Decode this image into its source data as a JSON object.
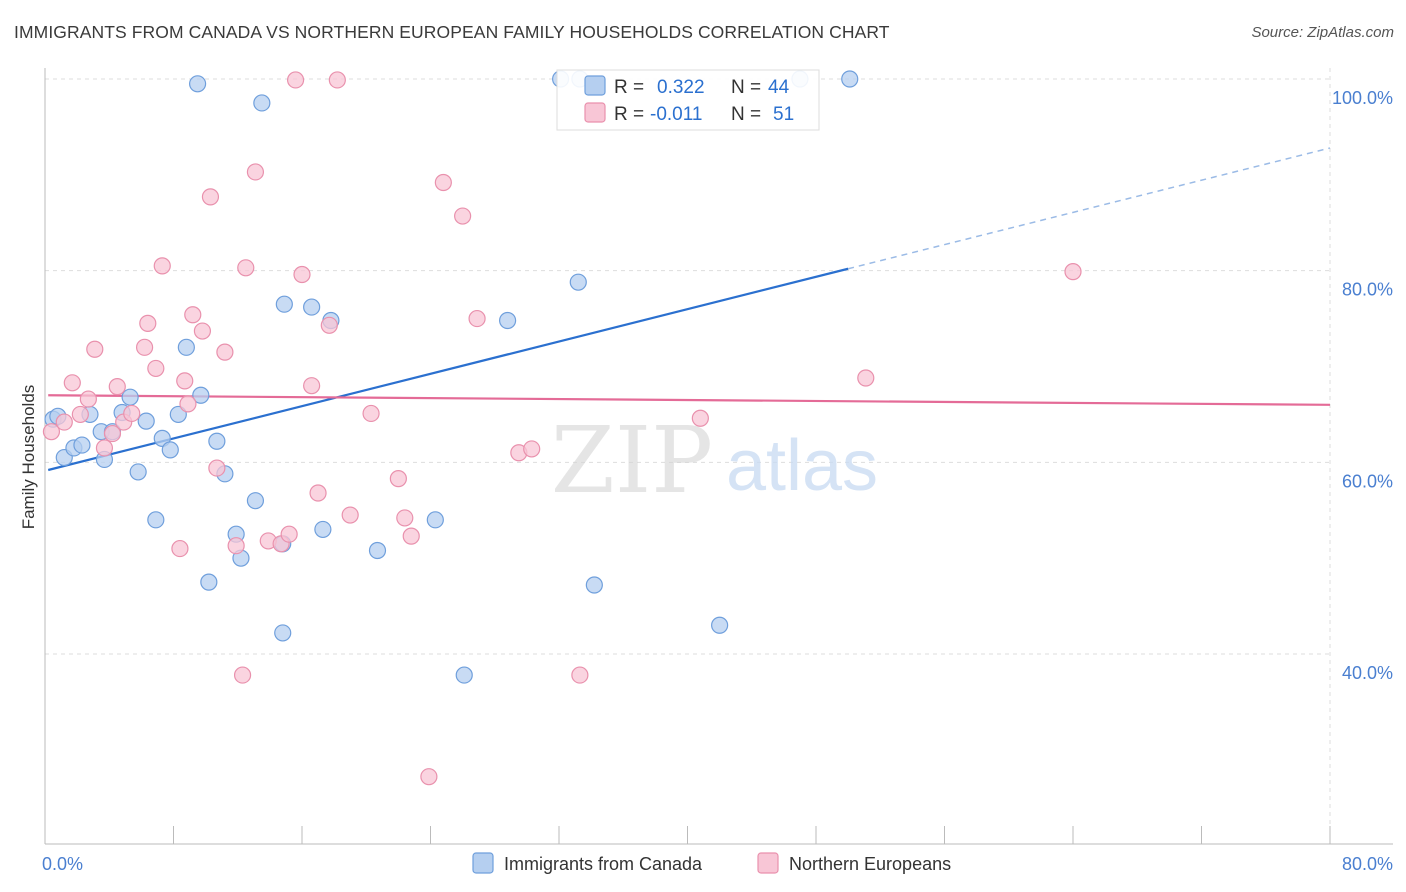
{
  "title": "IMMIGRANTS FROM CANADA VS NORTHERN EUROPEAN FAMILY HOUSEHOLDS CORRELATION CHART",
  "source": "Source: ZipAtlas.com",
  "watermark": {
    "zip": "ZIP",
    "atlas": "atlas"
  },
  "colors": {
    "blue_fill": "#b5cff0",
    "blue_stroke": "#6f9fdc",
    "blue_line": "#2b70cf",
    "pink_fill": "#f8c6d6",
    "pink_stroke": "#e991ad",
    "pink_line": "#e46b97",
    "axis_label": "#4a7fd0",
    "grid": "#dddddd"
  },
  "legend": {
    "series": [
      {
        "r_label": "R =",
        "r_value": "0.322",
        "n_label": "N =",
        "n_value": "44"
      },
      {
        "r_label": "R =",
        "r_value": "-0.011",
        "n_label": "N =",
        "n_value": "51"
      }
    ]
  },
  "chart_data": {
    "type": "scatter",
    "ylabel": "Family Households",
    "xlim": [
      0,
      80
    ],
    "ylim": [
      20,
      100
    ],
    "x_tick_labels": [
      "0.0%",
      "80.0%"
    ],
    "y_ticks": [
      {
        "value": 40,
        "label": "40.0%"
      },
      {
        "value": 60,
        "label": "60.0%"
      },
      {
        "value": 80,
        "label": "80.0%"
      },
      {
        "value": 100,
        "label": "100.0%"
      }
    ],
    "grid": true,
    "legend_position": "top-center",
    "series": [
      {
        "name": "Immigrants from Canada",
        "trend": {
          "x0": 0.2,
          "y0": 59.2,
          "x1": 50.0,
          "y1": 80.2,
          "dash_to_x": 80.0,
          "dash_to_y": 92.8
        },
        "points": [
          [
            0.5,
            64.5
          ],
          [
            0.8,
            64.8
          ],
          [
            1.2,
            60.5
          ],
          [
            1.8,
            61.5
          ],
          [
            2.3,
            61.8
          ],
          [
            2.8,
            65.0
          ],
          [
            3.5,
            63.2
          ],
          [
            3.7,
            60.3
          ],
          [
            4.2,
            63.2
          ],
          [
            4.8,
            65.2
          ],
          [
            5.3,
            66.8
          ],
          [
            5.8,
            59.0
          ],
          [
            6.3,
            64.3
          ],
          [
            6.9,
            54.0
          ],
          [
            7.3,
            62.5
          ],
          [
            7.8,
            61.3
          ],
          [
            8.3,
            65.0
          ],
          [
            8.8,
            72.0
          ],
          [
            9.5,
            99.5
          ],
          [
            9.7,
            67.0
          ],
          [
            10.2,
            47.5
          ],
          [
            10.7,
            62.2
          ],
          [
            11.2,
            58.8
          ],
          [
            11.9,
            52.5
          ],
          [
            12.2,
            50.0
          ],
          [
            13.1,
            56.0
          ],
          [
            13.5,
            97.5
          ],
          [
            14.8,
            51.5
          ],
          [
            14.8,
            42.2
          ],
          [
            14.9,
            76.5
          ],
          [
            16.6,
            76.2
          ],
          [
            17.3,
            53.0
          ],
          [
            17.8,
            74.8
          ],
          [
            20.7,
            50.8
          ],
          [
            24.3,
            54.0
          ],
          [
            26.1,
            37.8
          ],
          [
            28.8,
            74.8
          ],
          [
            32.1,
            100.0
          ],
          [
            33.3,
            100.0
          ],
          [
            33.2,
            78.8
          ],
          [
            34.2,
            47.2
          ],
          [
            42.0,
            43.0
          ],
          [
            47.0,
            100.0
          ],
          [
            50.1,
            100.0
          ]
        ]
      },
      {
        "name": "Northern Europeans",
        "trend": {
          "x0": 0.2,
          "y0": 67.0,
          "x1": 80.0,
          "y1": 66.0
        },
        "points": [
          [
            0.4,
            63.2
          ],
          [
            1.2,
            64.2
          ],
          [
            1.7,
            68.3
          ],
          [
            2.2,
            65.0
          ],
          [
            2.7,
            66.6
          ],
          [
            3.1,
            71.8
          ],
          [
            3.7,
            61.5
          ],
          [
            4.2,
            63.0
          ],
          [
            4.5,
            67.9
          ],
          [
            4.9,
            64.2
          ],
          [
            5.4,
            65.1
          ],
          [
            6.2,
            72.0
          ],
          [
            6.4,
            74.5
          ],
          [
            6.9,
            69.8
          ],
          [
            7.3,
            80.5
          ],
          [
            8.4,
            51.0
          ],
          [
            8.7,
            68.5
          ],
          [
            8.9,
            66.1
          ],
          [
            9.2,
            75.4
          ],
          [
            9.8,
            73.7
          ],
          [
            10.3,
            87.7
          ],
          [
            10.7,
            59.4
          ],
          [
            11.2,
            71.5
          ],
          [
            11.9,
            51.3
          ],
          [
            12.3,
            37.8
          ],
          [
            12.5,
            80.3
          ],
          [
            13.1,
            90.3
          ],
          [
            13.9,
            51.8
          ],
          [
            14.7,
            51.5
          ],
          [
            15.2,
            52.5
          ],
          [
            15.6,
            99.9
          ],
          [
            16.0,
            79.6
          ],
          [
            16.6,
            68.0
          ],
          [
            17.0,
            56.8
          ],
          [
            17.7,
            74.3
          ],
          [
            18.2,
            99.9
          ],
          [
            19.0,
            54.5
          ],
          [
            20.3,
            65.1
          ],
          [
            22.0,
            58.3
          ],
          [
            22.4,
            54.2
          ],
          [
            23.9,
            27.2
          ],
          [
            22.8,
            52.3
          ],
          [
            24.8,
            89.2
          ],
          [
            26.0,
            85.7
          ],
          [
            26.9,
            75.0
          ],
          [
            29.5,
            61.0
          ],
          [
            30.3,
            61.4
          ],
          [
            33.3,
            37.8
          ],
          [
            40.8,
            64.6
          ],
          [
            51.1,
            68.8
          ],
          [
            64.0,
            79.9
          ]
        ]
      }
    ]
  }
}
